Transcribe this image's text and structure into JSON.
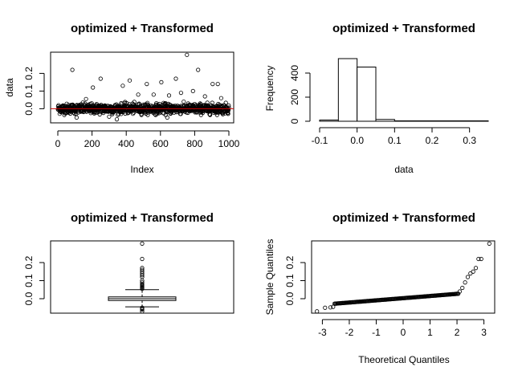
{
  "chart_data": [
    {
      "id": "scatter",
      "type": "scatter",
      "title": "optimized + Transformed",
      "xlabel": "Index",
      "ylabel": "data",
      "xlim": [
        0,
        1000
      ],
      "ylim": [
        -0.08,
        0.32
      ],
      "xticks": [
        0,
        200,
        400,
        600,
        800,
        1000
      ],
      "xtick_labels": [
        "0",
        "200",
        "400",
        "600",
        "800",
        "1000"
      ],
      "yticks": [
        0.0,
        0.1,
        0.2
      ],
      "ytick_labels": [
        "0.0",
        "0.1",
        "0.2"
      ],
      "hline": {
        "y": 0.0,
        "color": "#cc0000"
      },
      "n_points": 1000,
      "bulk_range": [
        -0.035,
        0.04
      ],
      "outliers": [
        {
          "x": 85,
          "y": 0.22
        },
        {
          "x": 165,
          "y": 0.055
        },
        {
          "x": 205,
          "y": 0.12
        },
        {
          "x": 250,
          "y": 0.17
        },
        {
          "x": 300,
          "y": -0.045
        },
        {
          "x": 345,
          "y": -0.06
        },
        {
          "x": 380,
          "y": 0.13
        },
        {
          "x": 420,
          "y": 0.16
        },
        {
          "x": 470,
          "y": 0.08
        },
        {
          "x": 520,
          "y": 0.14
        },
        {
          "x": 560,
          "y": 0.08
        },
        {
          "x": 605,
          "y": 0.15
        },
        {
          "x": 650,
          "y": 0.075
        },
        {
          "x": 690,
          "y": 0.17
        },
        {
          "x": 720,
          "y": 0.09
        },
        {
          "x": 755,
          "y": 0.305
        },
        {
          "x": 790,
          "y": 0.1
        },
        {
          "x": 820,
          "y": 0.22
        },
        {
          "x": 860,
          "y": 0.07
        },
        {
          "x": 905,
          "y": 0.14
        },
        {
          "x": 935,
          "y": 0.14
        },
        {
          "x": 955,
          "y": 0.06
        },
        {
          "x": 110,
          "y": -0.05
        },
        {
          "x": 640,
          "y": -0.05
        }
      ]
    },
    {
      "id": "hist",
      "type": "bar",
      "title": "optimized + Transformed",
      "xlabel": "data",
      "ylabel": "Frequency",
      "xlim": [
        -0.1,
        0.35
      ],
      "ylim": [
        0,
        520
      ],
      "xticks": [
        -0.1,
        0.0,
        0.1,
        0.2,
        0.3
      ],
      "xtick_labels": [
        "-0.1",
        "0.0",
        "0.1",
        "0.2",
        "0.3"
      ],
      "yticks": [
        0,
        200,
        400
      ],
      "ytick_labels": [
        "0",
        "200",
        "400"
      ],
      "bins": [
        {
          "x0": -0.1,
          "x1": -0.05,
          "count": 10
        },
        {
          "x0": -0.05,
          "x1": 0.0,
          "count": 520
        },
        {
          "x0": 0.0,
          "x1": 0.05,
          "count": 450
        },
        {
          "x0": 0.05,
          "x1": 0.1,
          "count": 15
        },
        {
          "x0": 0.1,
          "x1": 0.15,
          "count": 3
        },
        {
          "x0": 0.15,
          "x1": 0.2,
          "count": 3
        },
        {
          "x0": 0.2,
          "x1": 0.25,
          "count": 1
        },
        {
          "x0": 0.25,
          "x1": 0.3,
          "count": 0
        },
        {
          "x0": 0.3,
          "x1": 0.35,
          "count": 1
        }
      ]
    },
    {
      "id": "box",
      "type": "box",
      "title": "optimized + Transformed",
      "ylim": [
        -0.08,
        0.32
      ],
      "yticks": [
        0.0,
        0.1,
        0.2
      ],
      "ytick_labels": [
        "0.0",
        "0.1",
        "0.2"
      ],
      "q1": -0.01,
      "median": 0.0,
      "q3": 0.01,
      "whisker_low": -0.045,
      "whisker_high": 0.05,
      "outliers": [
        0.055,
        0.06,
        0.065,
        0.07,
        0.075,
        0.08,
        0.09,
        0.1,
        0.12,
        0.13,
        0.14,
        0.15,
        0.16,
        0.17,
        0.22,
        0.305,
        -0.05,
        -0.055,
        -0.06,
        -0.07
      ]
    },
    {
      "id": "qq",
      "type": "scatter",
      "title": "optimized + Transformed",
      "xlabel": "Theoretical Quantiles",
      "ylabel": "Sample Quantiles",
      "xlim": [
        -3.4,
        3.4
      ],
      "ylim": [
        -0.08,
        0.32
      ],
      "xticks": [
        -3,
        -2,
        -1,
        0,
        1,
        2,
        3
      ],
      "xtick_labels": [
        "-3",
        "-2",
        "-1",
        "0",
        "1",
        "2",
        "3"
      ],
      "yticks": [
        0.0,
        0.1,
        0.2
      ],
      "ytick_labels": [
        "0.0",
        "0.1",
        "0.2"
      ],
      "tail_points": [
        {
          "x": -3.2,
          "y": -0.07
        },
        {
          "x": -2.9,
          "y": -0.05
        },
        {
          "x": -2.7,
          "y": -0.048
        },
        {
          "x": -2.6,
          "y": -0.045
        },
        {
          "x": 2.1,
          "y": 0.04
        },
        {
          "x": 2.2,
          "y": 0.06
        },
        {
          "x": 2.3,
          "y": 0.09
        },
        {
          "x": 2.4,
          "y": 0.12
        },
        {
          "x": 2.5,
          "y": 0.14
        },
        {
          "x": 2.6,
          "y": 0.15
        },
        {
          "x": 2.7,
          "y": 0.17
        },
        {
          "x": 2.8,
          "y": 0.22
        },
        {
          "x": 2.9,
          "y": 0.22
        },
        {
          "x": 3.2,
          "y": 0.305
        }
      ]
    }
  ]
}
